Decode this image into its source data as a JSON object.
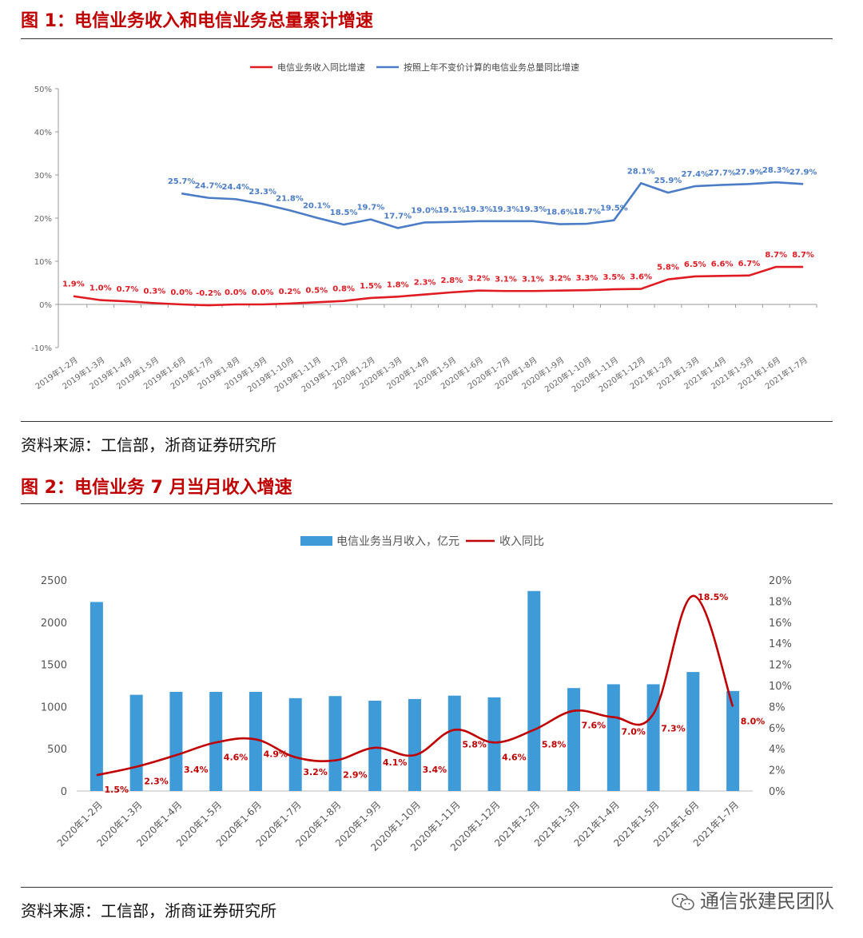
{
  "figure1": {
    "title": "图 1：电信业务收入和电信业务总量累计增速",
    "source": "资料来源：工信部，浙商证券研究所"
  },
  "figure2": {
    "title": "图 2：电信业务 7 月当月收入增速",
    "source": "资料来源：工信部，浙商证券研究所"
  },
  "watermark": "通信张建民团队",
  "colors": {
    "red": "#e01b22",
    "blue": "#4a7cc7",
    "bar": "#3f9ad8",
    "darkred": "#c00000",
    "axis": "#9a9a9a"
  },
  "chart_data": [
    {
      "type": "line",
      "categories": [
        "2019年1-2月",
        "2019年1-3月",
        "2019年1-4月",
        "2019年1-5月",
        "2019年1-6月",
        "2019年1-7月",
        "2019年1-8月",
        "2019年1-9月",
        "2019年1-10月",
        "2019年1-11月",
        "2019年1-12月",
        "2020年1-2月",
        "2020年1-3月",
        "2020年1-4月",
        "2020年1-5月",
        "2020年1-6月",
        "2020年1-7月",
        "2020年1-8月",
        "2020年1-9月",
        "2020年1-10月",
        "2020年1-11月",
        "2020年1-12月",
        "2021年1-2月",
        "2021年1-3月",
        "2021年1-4月",
        "2021年1-5月",
        "2021年1-6月",
        "2021年1-7月"
      ],
      "series": [
        {
          "name": "电信业务收入同比增速",
          "color": "#e01b22",
          "values": [
            1.9,
            1.0,
            0.7,
            0.3,
            0.0,
            -0.2,
            0.0,
            0.0,
            0.2,
            0.5,
            0.8,
            1.5,
            1.8,
            2.3,
            2.8,
            3.2,
            3.1,
            3.1,
            3.2,
            3.3,
            3.5,
            3.6,
            5.8,
            6.5,
            6.6,
            6.7,
            8.7,
            8.7
          ],
          "labels": [
            "1.9%",
            "1.0%",
            "0.7%",
            "0.3%",
            "0.0%",
            "-0.2%",
            "0.0%",
            "0.0%",
            "0.2%",
            "0.5%",
            "0.8%",
            "1.5%",
            "1.8%",
            "2.3%",
            "2.8%",
            "3.2%",
            "3.1%",
            "3.1%",
            "3.2%",
            "3.3%",
            "3.5%",
            "3.6%",
            "5.8%",
            "6.5%",
            "6.6%",
            "6.7%",
            "8.7%",
            "8.7%"
          ]
        },
        {
          "name": "按照上年不变价计算的电信业务总量同比增速",
          "color": "#4a7cc7",
          "values": [
            null,
            null,
            null,
            null,
            25.7,
            24.7,
            24.4,
            23.3,
            21.8,
            20.1,
            18.5,
            19.7,
            17.7,
            19.0,
            19.1,
            19.3,
            19.3,
            19.3,
            18.6,
            18.7,
            19.5,
            28.1,
            25.9,
            27.4,
            27.7,
            27.9,
            28.3,
            27.9
          ],
          "labels": [
            null,
            null,
            null,
            null,
            "25.7%",
            "24.7%",
            "24.4%",
            "23.3%",
            "21.8%",
            "20.1%",
            "18.5%",
            "19.7%",
            "17.7%",
            "19.0%",
            "19.1%",
            "19.3%",
            "19.3%",
            "19.3%",
            "18.6%",
            "18.7%",
            "19.5%",
            "28.1%",
            "25.9%",
            "27.4%",
            "27.7%",
            "27.9%",
            "28.3%",
            "27.9%"
          ]
        }
      ],
      "yticks": [
        "50%",
        "40%",
        "30%",
        "20%",
        "10%",
        "0%",
        "-10%"
      ],
      "ylim": [
        -10,
        50
      ]
    },
    {
      "type": "bar",
      "categories": [
        "2020年1-2月",
        "2020年1-3月",
        "2020年1-4月",
        "2020年1-5月",
        "2020年1-6月",
        "2020年1-7月",
        "2020年1-8月",
        "2020年1-9月",
        "2020年1-10月",
        "2020年1-11月",
        "2020年1-12月",
        "2021年1-2月",
        "2021年1-3月",
        "2021年1-4月",
        "2021年1-5月",
        "2021年1-6月",
        "2021年1-7月"
      ],
      "series": [
        {
          "name": "电信业务当月收入，亿元",
          "axis": "left",
          "type": "bar",
          "color": "#3f9ad8",
          "values": [
            2240,
            1140,
            1175,
            1175,
            1175,
            1100,
            1125,
            1070,
            1090,
            1130,
            1110,
            2370,
            1220,
            1265,
            1265,
            1410,
            1185
          ]
        },
        {
          "name": "收入同比",
          "axis": "right",
          "type": "line",
          "color": "#c00000",
          "values": [
            1.5,
            2.3,
            3.4,
            4.6,
            4.9,
            3.2,
            2.9,
            4.1,
            3.4,
            5.8,
            4.6,
            5.8,
            7.6,
            7.0,
            7.3,
            18.5,
            8.0
          ],
          "labels": [
            "1.5%",
            "2.3%",
            "3.4%",
            "4.6%",
            "4.9%",
            "3.2%",
            "2.9%",
            "4.1%",
            "3.4%",
            "5.8%",
            "4.6%",
            "5.8%",
            "7.6%",
            "7.0%",
            "7.3%",
            "18.5%",
            "8.0%"
          ]
        }
      ],
      "yticks_left": [
        "2500",
        "2000",
        "1500",
        "1000",
        "500",
        "0"
      ],
      "yticks_right": [
        "20%",
        "18%",
        "16%",
        "14%",
        "12%",
        "10%",
        "8%",
        "6%",
        "4%",
        "2%",
        "0%"
      ],
      "ylim_left": [
        0,
        2500
      ],
      "ylim_right": [
        0,
        20
      ]
    }
  ]
}
